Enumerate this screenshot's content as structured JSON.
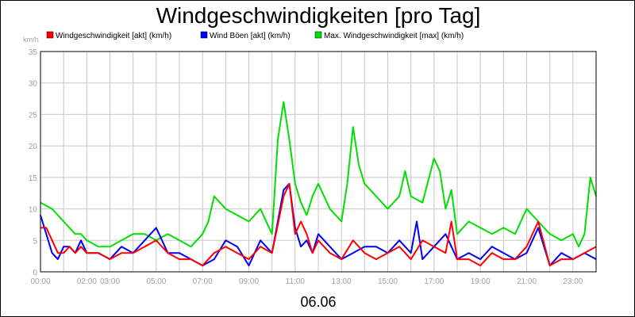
{
  "chart_data": {
    "type": "line",
    "title": "Windgeschwindigkeiten [pro Tag]",
    "ylabel": "km/h",
    "xlabel": "06.06",
    "ylim": [
      0,
      35
    ],
    "yticks": [
      0,
      5,
      10,
      15,
      20,
      25,
      30,
      35
    ],
    "xlim_hours": [
      0,
      24
    ],
    "xticks": [
      {
        "h": 0,
        "label": "00:00"
      },
      {
        "h": 2,
        "label": "02:00"
      },
      {
        "h": 3,
        "label": "03:00"
      },
      {
        "h": 5,
        "label": "05:00"
      },
      {
        "h": 7,
        "label": "07:00"
      },
      {
        "h": 9,
        "label": "09:00"
      },
      {
        "h": 11,
        "label": "11:00"
      },
      {
        "h": 13,
        "label": "13:00"
      },
      {
        "h": 15,
        "label": "15:00"
      },
      {
        "h": 17,
        "label": "17:00"
      },
      {
        "h": 19,
        "label": "19:00"
      },
      {
        "h": 21,
        "label": "21:00"
      },
      {
        "h": 23,
        "label": "23:00"
      }
    ],
    "grid": true,
    "legend_position": "top",
    "series": [
      {
        "name": "Max. Windgeschwindigkeit [max] (km/h)",
        "color": "#00e000",
        "x": [
          0,
          0.5,
          0.75,
          1,
          1.25,
          1.5,
          1.75,
          2,
          2.5,
          3,
          3.5,
          4,
          4.5,
          5,
          5.5,
          6,
          6.5,
          7,
          7.25,
          7.5,
          7.75,
          8,
          8.5,
          9,
          9.5,
          10,
          10.25,
          10.5,
          10.75,
          11,
          11.25,
          11.5,
          11.75,
          12,
          12.5,
          13,
          13.25,
          13.5,
          13.75,
          14,
          14.25,
          14.5,
          15,
          15.5,
          15.75,
          16,
          16.5,
          17,
          17.25,
          17.5,
          17.75,
          18,
          18.5,
          19,
          19.5,
          20,
          20.5,
          21,
          21.5,
          22,
          22.5,
          23,
          23.25,
          23.5,
          23.75,
          24
        ],
        "values": [
          11,
          10,
          9,
          8,
          7,
          6,
          6,
          5,
          4,
          4,
          5,
          6,
          6,
          5,
          6,
          5,
          4,
          6,
          8,
          12,
          11,
          10,
          9,
          8,
          10,
          6,
          21,
          27,
          21,
          14,
          11,
          9,
          12,
          14,
          10,
          8,
          14,
          23,
          17,
          14,
          13,
          12,
          10,
          12,
          16,
          12,
          11,
          18,
          16,
          10,
          13,
          6,
          8,
          7,
          6,
          7,
          6,
          10,
          8,
          6,
          5,
          6,
          4,
          6,
          15,
          12
        ]
      },
      {
        "name": "Wind Böen [akt] (km/h)",
        "color": "#0000ff",
        "x": [
          0,
          0.25,
          0.5,
          0.75,
          1,
          1.25,
          1.5,
          1.75,
          2,
          2.5,
          3,
          3.5,
          4,
          4.5,
          5,
          5.5,
          6,
          6.5,
          7,
          7.5,
          8,
          8.5,
          9,
          9.5,
          10,
          10.5,
          10.75,
          11,
          11.25,
          11.5,
          11.75,
          12,
          12.5,
          13,
          13.5,
          14,
          14.5,
          15,
          15.5,
          16,
          16.25,
          16.5,
          17,
          17.5,
          18,
          18.5,
          19,
          19.5,
          20,
          20.5,
          21,
          21.5,
          22,
          22.5,
          23,
          23.5,
          24
        ],
        "values": [
          9,
          6,
          3,
          2,
          4,
          4,
          3,
          5,
          3,
          3,
          2,
          4,
          3,
          5,
          7,
          3,
          3,
          2,
          1,
          2,
          5,
          4,
          1,
          5,
          3,
          13,
          14,
          7,
          4,
          5,
          3,
          6,
          4,
          2,
          3,
          4,
          4,
          3,
          5,
          3,
          8,
          2,
          4,
          6,
          2,
          3,
          2,
          4,
          3,
          2,
          3,
          7,
          1,
          3,
          2,
          3,
          2
        ]
      },
      {
        "name": "Windgeschwindigkeit [akt] (km/h)",
        "color": "#ff0000",
        "x": [
          0,
          0.25,
          0.5,
          0.75,
          1,
          1.25,
          1.5,
          1.75,
          2,
          2.5,
          3,
          3.5,
          4,
          4.5,
          5,
          5.5,
          6,
          6.5,
          7,
          7.5,
          8,
          8.5,
          9,
          9.5,
          10,
          10.5,
          10.75,
          11,
          11.25,
          11.5,
          11.75,
          12,
          12.5,
          13,
          13.5,
          14,
          14.5,
          15,
          15.5,
          16,
          16.5,
          17,
          17.5,
          17.75,
          18,
          18.5,
          19,
          19.5,
          20,
          20.5,
          21,
          21.5,
          22,
          22.5,
          23,
          23.5,
          24
        ],
        "values": [
          7,
          7,
          5,
          3,
          3,
          4,
          3,
          4,
          3,
          3,
          2,
          3,
          3,
          4,
          5,
          3,
          2,
          2,
          1,
          3,
          4,
          3,
          2,
          4,
          3,
          12,
          14,
          6,
          8,
          6,
          3,
          5,
          3,
          2,
          5,
          3,
          2,
          3,
          4,
          2,
          5,
          4,
          3,
          8,
          2,
          2,
          1,
          3,
          2,
          2,
          4,
          8,
          1,
          2,
          2,
          3,
          4
        ]
      }
    ]
  }
}
